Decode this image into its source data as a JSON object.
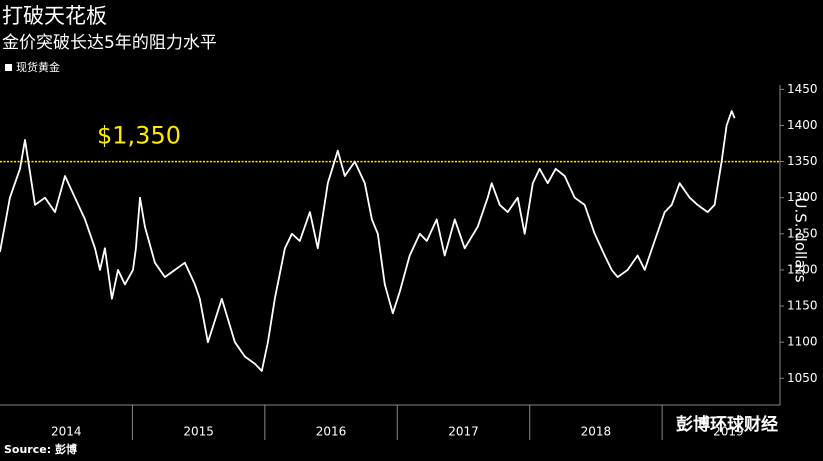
{
  "chart_data": {
    "type": "line",
    "title": "打破天花板",
    "subtitle": "金价突破长达5年的阻力水平",
    "y_label": "U.S. dollars",
    "source": "Source: 彭博",
    "watermark": "彭博环球财经",
    "x": [
      2014,
      2014.075,
      2014.151,
      2014.189,
      2014.264,
      2014.34,
      2014.415,
      2014.491,
      2014.566,
      2014.642,
      2014.717,
      2014.755,
      2014.792,
      2014.845,
      2014.891,
      2014.943,
      2015.004,
      2015.026,
      2015.057,
      2015.094,
      2015.17,
      2015.245,
      2015.321,
      2015.396,
      2015.472,
      2015.509,
      2015.57,
      2015.623,
      2015.675,
      2015.774,
      2015.849,
      2015.925,
      2015.977,
      2016.023,
      2016.075,
      2016.151,
      2016.204,
      2016.264,
      2016.34,
      2016.4,
      2016.475,
      2016.551,
      2016.604,
      2016.679,
      2016.755,
      2016.808,
      2016.853,
      2016.906,
      2016.966,
      2017.019,
      2017.094,
      2017.17,
      2017.223,
      2017.298,
      2017.358,
      2017.434,
      2017.509,
      2017.608,
      2017.683,
      2017.713,
      2017.774,
      2017.834,
      2017.909,
      2017.962,
      2018.023,
      2018.075,
      2018.136,
      2018.196,
      2018.264,
      2018.34,
      2018.415,
      2018.491,
      2018.566,
      2018.619,
      2018.664,
      2018.74,
      2018.815,
      2018.868,
      2018.943,
      2019.019,
      2019.072,
      2019.132,
      2019.208,
      2019.268,
      2019.343,
      2019.396,
      2019.449,
      2019.487,
      2019.525,
      2019.547
    ],
    "series": [
      {
        "name": "现货黄金",
        "color": "#ffffff",
        "values": [
          1225,
          1300,
          1340,
          1380,
          1290,
          1300,
          1280,
          1330,
          1300,
          1270,
          1230,
          1200,
          1230,
          1160,
          1200,
          1180,
          1200,
          1230,
          1300,
          1260,
          1210,
          1190,
          1200,
          1210,
          1180,
          1160,
          1100,
          1130,
          1160,
          1100,
          1080,
          1070,
          1060,
          1100,
          1160,
          1230,
          1250,
          1240,
          1280,
          1230,
          1320,
          1365,
          1330,
          1350,
          1320,
          1270,
          1250,
          1180,
          1140,
          1170,
          1220,
          1250,
          1240,
          1270,
          1220,
          1270,
          1230,
          1260,
          1300,
          1320,
          1290,
          1280,
          1300,
          1250,
          1320,
          1340,
          1320,
          1340,
          1330,
          1300,
          1290,
          1250,
          1220,
          1200,
          1190,
          1200,
          1220,
          1200,
          1240,
          1280,
          1290,
          1320,
          1300,
          1290,
          1280,
          1290,
          1350,
          1400,
          1420,
          1410
        ]
      }
    ],
    "hline": {
      "value": 1350,
      "label": "$1,350",
      "color": "#ffeb00"
    },
    "xlim": [
      2014,
      2019.89
    ],
    "xticks": [
      2015,
      2016,
      2017,
      2018,
      2019
    ],
    "x_labels": [
      "2014",
      "2015",
      "2016",
      "2017",
      "2018",
      "2019"
    ],
    "ylim": [
      1013,
      1456
    ],
    "yticks": [
      1050,
      1100,
      1150,
      1200,
      1250,
      1300,
      1350,
      1400,
      1450
    ]
  }
}
